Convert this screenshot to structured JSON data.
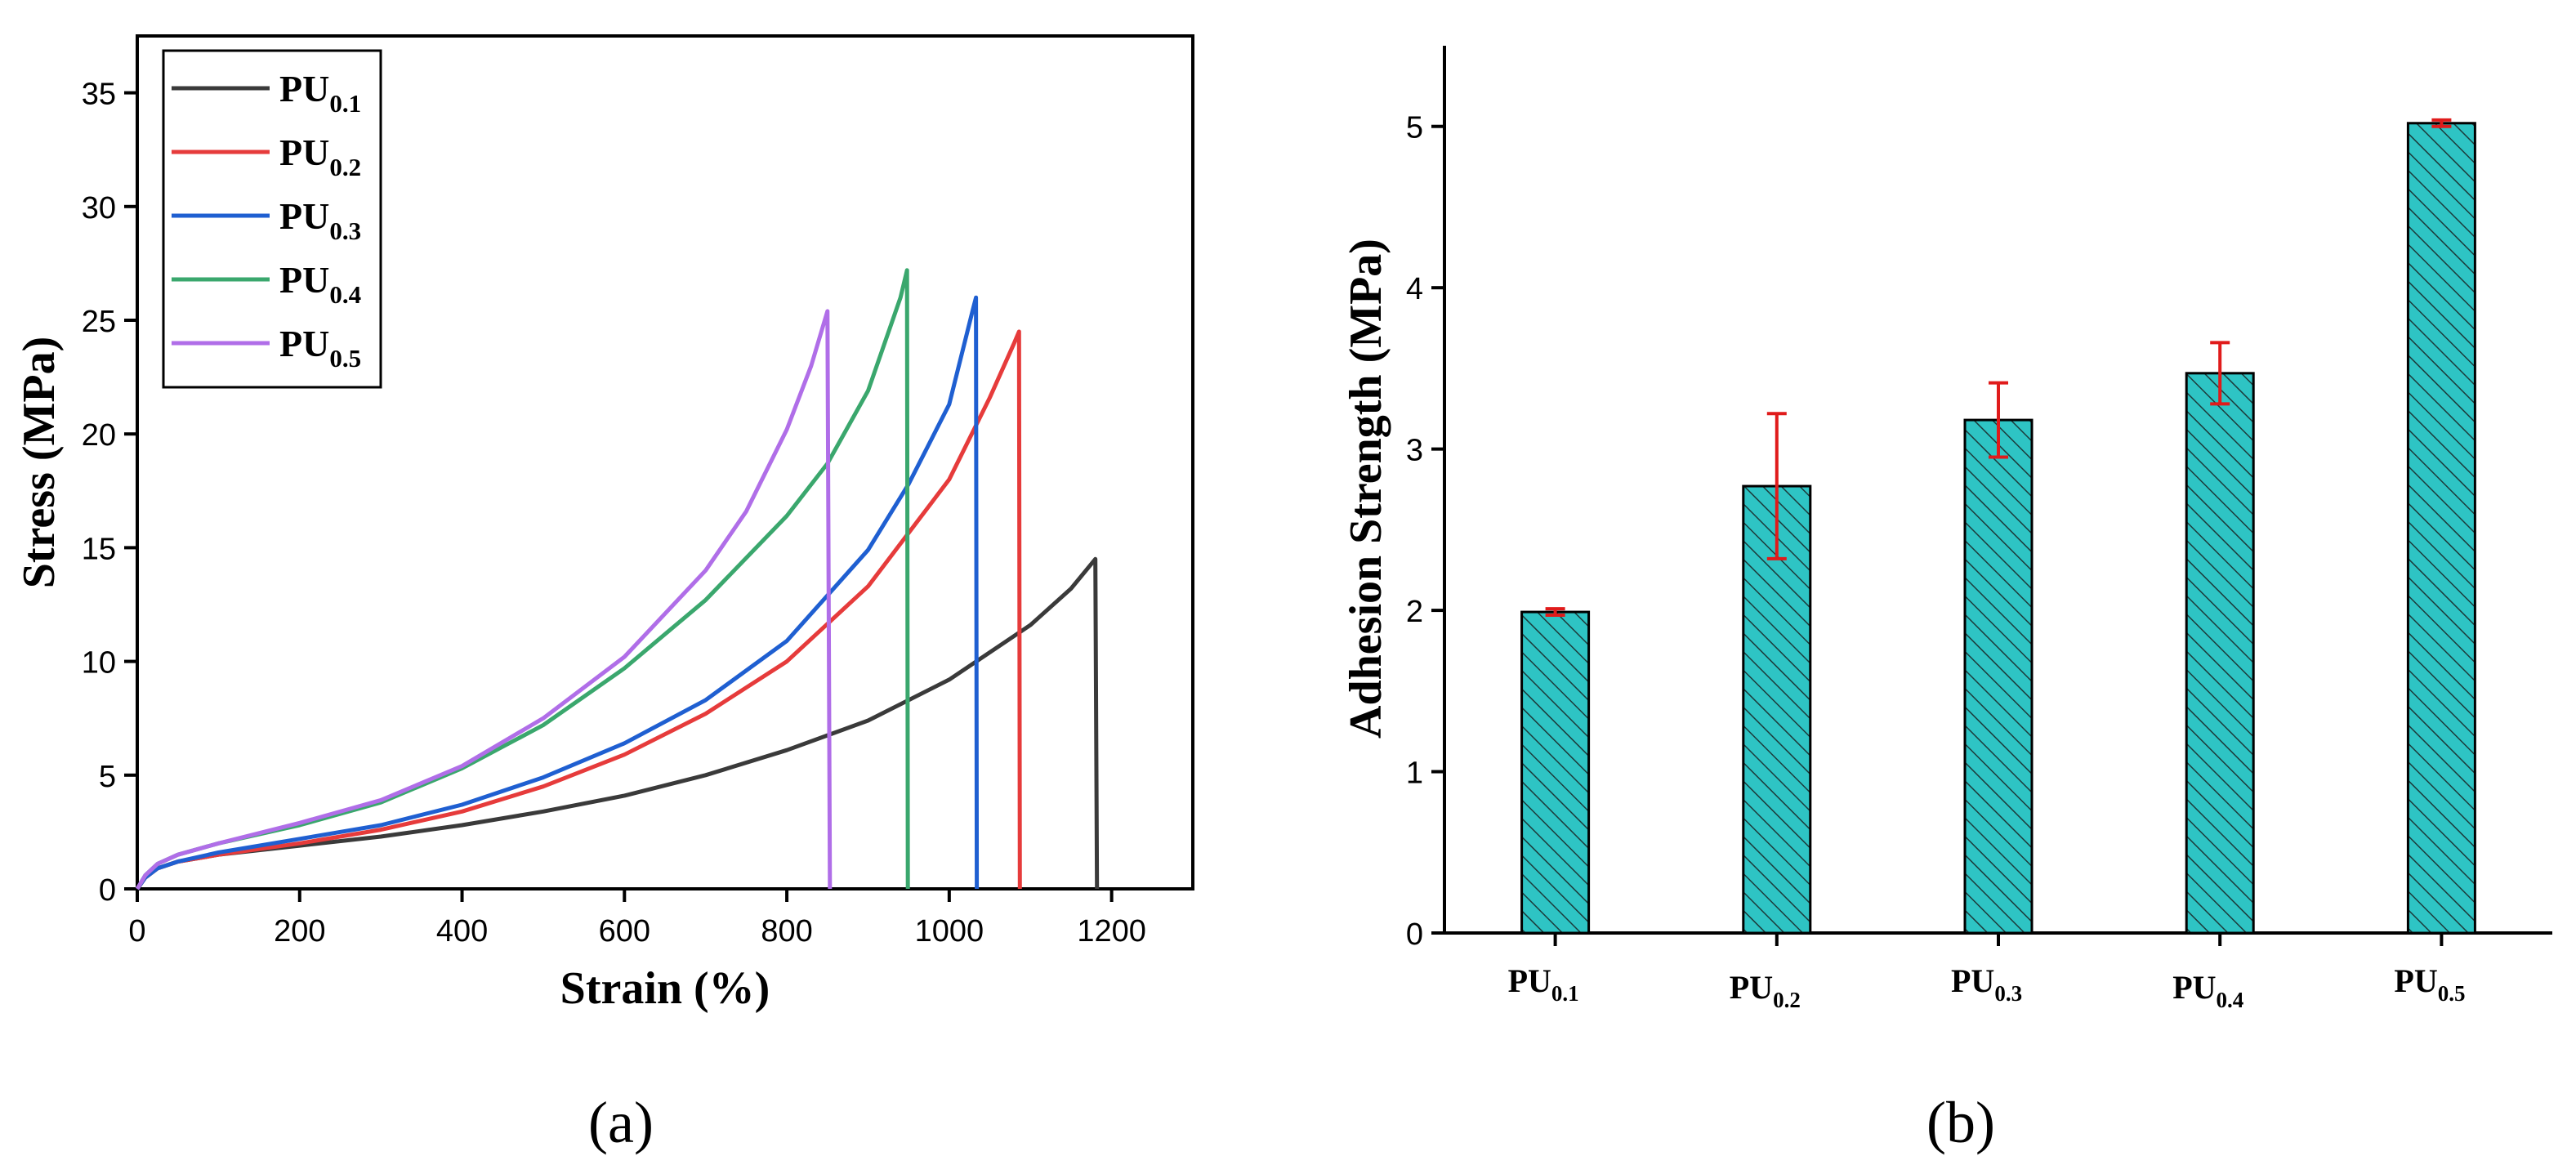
{
  "panel_labels": {
    "a": "(a)",
    "b": "(b)"
  },
  "chart_data": [
    {
      "type": "line",
      "title": "",
      "xlabel": "Strain (%)",
      "ylabel": "Stress (MPa)",
      "xlim": [
        0,
        1300
      ],
      "ylim": [
        0,
        37.5
      ],
      "xticks": [
        0,
        200,
        400,
        600,
        800,
        1000,
        1200
      ],
      "yticks": [
        0,
        5,
        10,
        15,
        20,
        25,
        30,
        35
      ],
      "grid": false,
      "legend_position": "top-left",
      "series": [
        {
          "name": "PU0.1",
          "label_base": "PU",
          "label_sub": "0.1",
          "color": "#3a3a3a",
          "x": [
            0,
            10,
            25,
            50,
            100,
            200,
            300,
            400,
            500,
            600,
            700,
            800,
            900,
            1000,
            1100,
            1150,
            1180,
            1182
          ],
          "y": [
            0,
            0.5,
            0.9,
            1.2,
            1.5,
            1.9,
            2.3,
            2.8,
            3.4,
            4.1,
            5.0,
            6.1,
            7.4,
            9.2,
            11.6,
            13.2,
            14.5,
            0
          ]
        },
        {
          "name": "PU0.2",
          "label_base": "PU",
          "label_sub": "0.2",
          "color": "#e63b3b",
          "x": [
            0,
            10,
            25,
            50,
            100,
            200,
            300,
            400,
            500,
            600,
            700,
            800,
            900,
            1000,
            1050,
            1080,
            1086,
            1087
          ],
          "y": [
            0,
            0.5,
            0.9,
            1.2,
            1.5,
            2.0,
            2.6,
            3.4,
            4.5,
            5.9,
            7.7,
            10.0,
            13.3,
            18.0,
            21.6,
            24.0,
            24.5,
            0
          ]
        },
        {
          "name": "PU0.3",
          "label_base": "PU",
          "label_sub": "0.3",
          "color": "#1f5fd1",
          "x": [
            0,
            10,
            25,
            50,
            100,
            200,
            300,
            400,
            500,
            600,
            700,
            800,
            900,
            950,
            1000,
            1030,
            1033,
            1034
          ],
          "y": [
            0,
            0.5,
            0.9,
            1.2,
            1.6,
            2.2,
            2.8,
            3.7,
            4.9,
            6.4,
            8.3,
            10.9,
            14.9,
            17.8,
            21.3,
            25.6,
            26.0,
            0
          ]
        },
        {
          "name": "PU0.4",
          "label_base": "PU",
          "label_sub": "0.4",
          "color": "#3aa76d",
          "x": [
            0,
            10,
            25,
            50,
            100,
            200,
            300,
            400,
            500,
            600,
            700,
            800,
            850,
            900,
            940,
            948,
            949
          ],
          "y": [
            0,
            0.6,
            1.1,
            1.5,
            2.0,
            2.8,
            3.8,
            5.3,
            7.2,
            9.7,
            12.7,
            16.4,
            18.7,
            21.9,
            26.0,
            27.2,
            0
          ]
        },
        {
          "name": "PU0.5",
          "label_base": "PU",
          "label_sub": "0.5",
          "color": "#b06ee8",
          "x": [
            0,
            10,
            25,
            50,
            100,
            200,
            300,
            400,
            500,
            600,
            700,
            750,
            800,
            830,
            850,
            853
          ],
          "y": [
            0,
            0.6,
            1.1,
            1.5,
            2.0,
            2.9,
            3.9,
            5.4,
            7.5,
            10.2,
            14.0,
            16.6,
            20.2,
            23.0,
            25.4,
            0
          ]
        }
      ]
    },
    {
      "type": "bar",
      "title": "",
      "xlabel": "",
      "ylabel": "Adhesion Strength (MPa)",
      "ylim": [
        0,
        5.5
      ],
      "yticks": [
        0,
        1,
        2,
        3,
        4,
        5
      ],
      "grid": false,
      "bar_color": "#2ec4c4",
      "hatch": "diagonal",
      "error_color": "#e01b1b",
      "categories": [
        "PU0.1",
        "PU0.2",
        "PU0.3",
        "PU0.4",
        "PU0.5"
      ],
      "category_labels": [
        {
          "base": "PU",
          "sub": "0.1"
        },
        {
          "base": "PU",
          "sub": "0.2"
        },
        {
          "base": "PU",
          "sub": "0.3"
        },
        {
          "base": "PU",
          "sub": "0.4"
        },
        {
          "base": "PU",
          "sub": "0.5"
        }
      ],
      "values": [
        1.99,
        2.77,
        3.18,
        3.47,
        5.02
      ],
      "errors": [
        0.02,
        0.45,
        0.23,
        0.19,
        0.02
      ]
    }
  ]
}
